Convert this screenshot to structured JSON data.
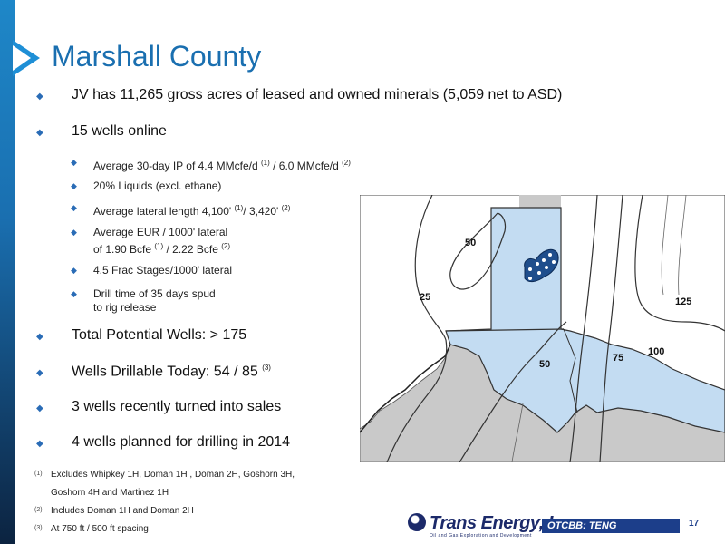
{
  "title": "Marshall County",
  "bullets": [
    "JV has 11,265 gross acres of leased and owned minerals (5,059 net to ASD)",
    "15 wells online"
  ],
  "sub_bullets": {
    "ip": {
      "text": "Average 30-day IP of 4.4 MMcfe/d ",
      "fn1": "(1)",
      "mid": " / 6.0 MMcfe/d ",
      "fn2": "(2)"
    },
    "liquids": "20% Liquids (excl. ethane)",
    "lateral": {
      "text": "Average lateral length 4,100' ",
      "fn1": "(1)",
      "mid": "/ 3,420' ",
      "fn2": "(2)"
    },
    "eur": {
      "line1": "Average EUR / 1000' lateral",
      "line2": "of 1.90 Bcfe ",
      "fn1": "(1)",
      "mid": " / 2.22 Bcfe ",
      "fn2": "(2)"
    },
    "frac": "4.5 Frac Stages/1000' lateral",
    "drill": {
      "line1": "Drill time of 35 days spud",
      "line2": "to rig release"
    }
  },
  "bullets2": [
    "Total Potential Wells:  > 175",
    {
      "text": "Wells Drillable Today:  54 / 85 ",
      "fn": "(3)"
    },
    "3 wells recently turned into sales",
    "4 wells planned for drilling in 2014"
  ],
  "footnotes": [
    {
      "mark": "(1)",
      "line1": "Excludes Whipkey 1H, Doman 1H , Doman 2H, Goshorn 3H,",
      "line2": "Goshorn 4H and Martinez 1H"
    },
    {
      "mark": "(2)",
      "line1": "Includes Doman 1H and Doman 2H"
    },
    {
      "mark": "(3)",
      "line1": "At 750 ft / 500 ft spacing"
    }
  ],
  "map_labels": {
    "l50a": "50",
    "l25": "25",
    "l125": "125",
    "l50b": "50",
    "l75": "75",
    "l100": "100"
  },
  "logo": {
    "name": "Trans Energy, Inc.",
    "tagline": "Oil and Gas Exploration and Development"
  },
  "ticker": "OTCBB: TENG",
  "page_number": "17",
  "colors": {
    "accent": "#1a6fb0",
    "lease": "#c3dcf2",
    "county_gray": "#c9c9c9",
    "ticker_bg": "#1c3e8a"
  }
}
